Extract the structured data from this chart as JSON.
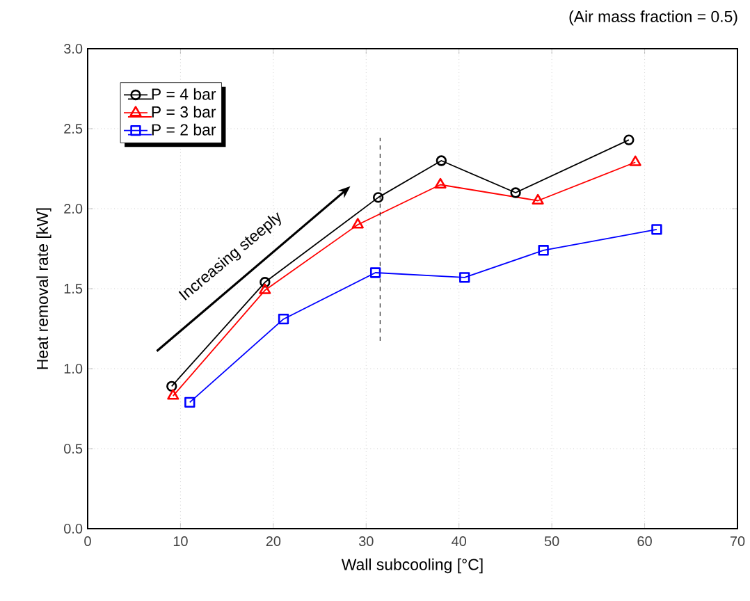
{
  "chart_data": {
    "type": "line",
    "xlabel": "Wall subcooling [°C]",
    "ylabel": "Heat removal rate [kW]",
    "annotations": [
      "(Air mass fraction = 0.5)",
      "Increasing steeply"
    ],
    "series": [
      {
        "name": "P = 4 bar",
        "color": "#000000",
        "marker": "circle",
        "x": [
          9.05,
          19.1,
          31.3,
          38.1,
          46.1,
          58.3
        ],
        "values": [
          0.89,
          1.54,
          2.07,
          2.3,
          2.1,
          2.43
        ]
      },
      {
        "name": "P = 3 bar",
        "color": "#ff0000",
        "marker": "triangle",
        "x": [
          9.2,
          19.1,
          29.1,
          38.0,
          48.5,
          59.0
        ],
        "values": [
          0.83,
          1.49,
          1.9,
          2.15,
          2.05,
          2.29
        ]
      },
      {
        "name": "P = 2 bar",
        "color": "#0000ff",
        "marker": "square",
        "x": [
          11.0,
          21.1,
          31.0,
          40.6,
          49.1,
          61.3
        ],
        "values": [
          0.79,
          1.31,
          1.6,
          1.57,
          1.74,
          1.87
        ]
      }
    ],
    "ref_lines": [
      {
        "axis": "x",
        "value": 31.5,
        "color": "#000000",
        "line_style": "dashed"
      }
    ],
    "xlim": [
      0,
      70
    ],
    "xticks": [
      0,
      10,
      20,
      30,
      40,
      50,
      60,
      70
    ],
    "ylim": [
      0,
      3
    ],
    "yticks": [
      {
        "value": 0,
        "label": "0.0"
      },
      0.5,
      {
        "value": 1,
        "label": "1.0"
      },
      1.5,
      {
        "value": 2,
        "label": "2.0"
      },
      2.5,
      {
        "value": 3,
        "label": "3.0"
      }
    ],
    "grid": true,
    "legend": "top left",
    "line_style": "solid"
  }
}
